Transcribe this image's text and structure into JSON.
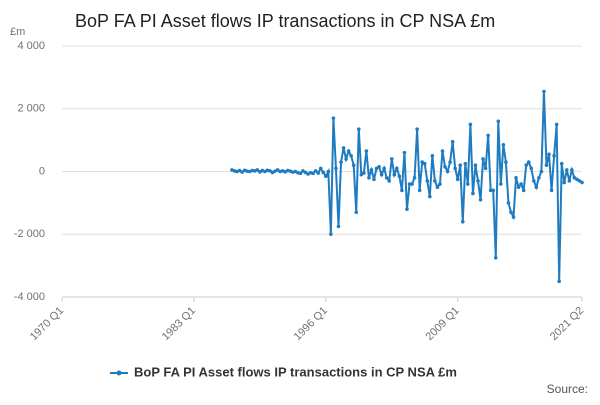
{
  "chart_data": {
    "type": "line",
    "title": "BoP FA PI Asset flows IP transactions in CP NSA £m",
    "y_label": "£m",
    "source": "Source:",
    "categories": [
      "1970 Q1",
      null,
      null,
      null,
      null,
      null,
      null,
      null,
      null,
      null,
      null,
      null,
      null,
      null,
      null,
      null,
      null,
      null,
      null,
      null,
      null,
      null,
      null,
      null,
      null,
      null,
      null,
      null,
      null,
      null,
      null,
      null,
      null,
      null,
      null,
      null,
      null,
      null,
      null,
      null,
      null,
      null,
      null,
      null,
      null,
      null,
      null,
      null,
      null,
      null,
      null,
      null,
      "1983 Q1",
      null,
      null,
      null,
      null,
      null,
      null,
      null,
      null,
      null,
      null,
      null,
      null,
      null,
      null,
      null,
      null,
      null,
      null,
      null,
      null,
      null,
      null,
      null,
      null,
      null,
      null,
      null,
      null,
      null,
      null,
      null,
      null,
      null,
      null,
      null,
      null,
      null,
      null,
      null,
      null,
      null,
      null,
      null,
      null,
      null,
      null,
      null,
      null,
      null,
      null,
      null,
      "1996 Q1",
      null,
      null,
      null,
      null,
      null,
      null,
      null,
      null,
      null,
      null,
      null,
      null,
      null,
      null,
      null,
      null,
      null,
      null,
      null,
      null,
      null,
      null,
      null,
      null,
      null,
      null,
      null,
      null,
      null,
      null,
      null,
      null,
      null,
      null,
      null,
      null,
      null,
      null,
      null,
      null,
      null,
      null,
      null,
      null,
      null,
      null,
      null,
      null,
      null,
      null,
      null,
      "2009 Q1",
      null,
      null,
      null,
      null,
      null,
      null,
      null,
      null,
      null,
      null,
      null,
      null,
      null,
      null,
      null,
      null,
      null,
      null,
      null,
      null,
      null,
      null,
      null,
      null,
      null,
      null,
      null,
      null,
      null,
      null,
      null,
      null,
      null,
      null,
      null,
      null,
      null,
      null,
      null,
      null,
      null,
      null,
      null,
      null,
      null,
      null,
      null,
      null,
      "2021 Q2"
    ],
    "series": [
      {
        "name": "BoP FA PI Asset flows IP transactions in CP NSA £m",
        "color": "#1f7cc1",
        "values": [
          null,
          null,
          null,
          null,
          null,
          null,
          null,
          null,
          null,
          null,
          null,
          null,
          null,
          null,
          null,
          null,
          null,
          null,
          null,
          null,
          null,
          null,
          null,
          null,
          null,
          null,
          null,
          null,
          null,
          null,
          null,
          null,
          null,
          null,
          null,
          null,
          null,
          null,
          null,
          null,
          null,
          null,
          null,
          null,
          null,
          null,
          null,
          null,
          null,
          null,
          null,
          null,
          null,
          null,
          null,
          null,
          null,
          null,
          null,
          null,
          null,
          null,
          null,
          null,
          null,
          null,
          null,
          50,
          20,
          0,
          30,
          -20,
          40,
          10,
          0,
          30,
          20,
          50,
          -10,
          30,
          0,
          40,
          20,
          -30,
          10,
          50,
          0,
          20,
          -10,
          30,
          10,
          -20,
          0,
          -40,
          -60,
          20,
          -30,
          -80,
          -40,
          -60,
          20,
          -50,
          100,
          -30,
          -150,
          0,
          -2000,
          1700,
          100,
          -1750,
          300,
          750,
          400,
          650,
          500,
          200,
          -1300,
          1350,
          -100,
          -50,
          650,
          -200,
          50,
          -250,
          100,
          150,
          -100,
          100,
          -200,
          -300,
          400,
          -100,
          100,
          -150,
          -600,
          600,
          -1200,
          -400,
          -400,
          -200,
          1350,
          -600,
          300,
          250,
          -300,
          -800,
          500,
          -300,
          -500,
          -400,
          650,
          150,
          0,
          300,
          950,
          100,
          -250,
          200,
          -1600,
          250,
          -400,
          1500,
          -700,
          200,
          -300,
          -900,
          400,
          100,
          1150,
          -600,
          -600,
          -2750,
          1600,
          -400,
          850,
          300,
          -1000,
          -1300,
          -1450,
          -200,
          -500,
          -400,
          -600,
          200,
          300,
          100,
          -300,
          -500,
          -200,
          0,
          2550,
          200,
          550,
          -600,
          500,
          1500,
          -3500,
          250,
          -350,
          50,
          -300,
          50,
          -200,
          -250,
          -300,
          -350
        ]
      }
    ],
    "ylim": [
      -4000,
      4000
    ],
    "yticks": [
      {
        "value": -4000,
        "label": "-4 000"
      },
      {
        "value": -2000,
        "label": "-2 000"
      },
      0,
      {
        "value": 2000,
        "label": "2 000"
      },
      {
        "value": 4000,
        "label": "4 000"
      }
    ],
    "grid": true
  }
}
